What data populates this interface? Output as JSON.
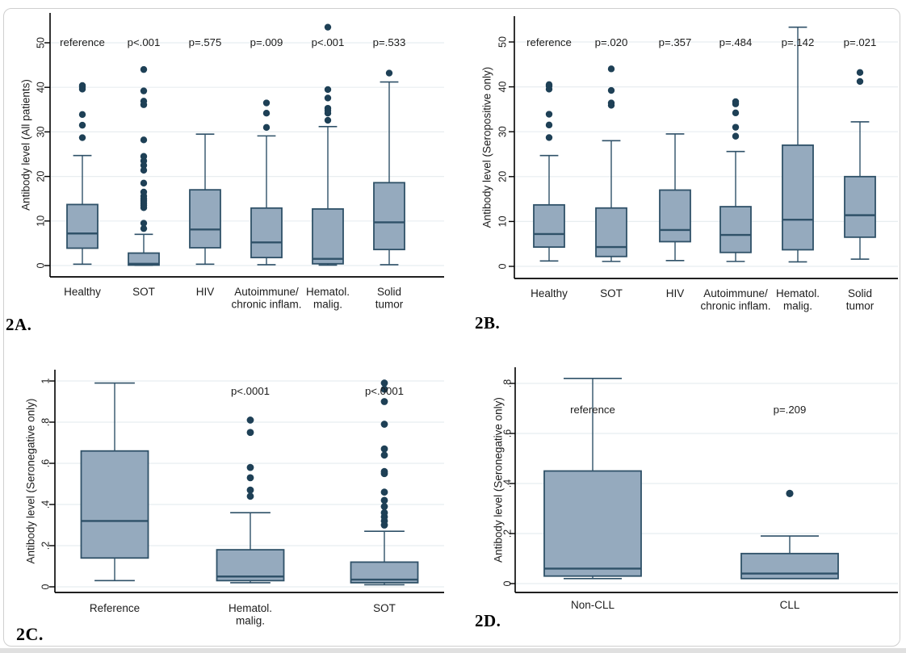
{
  "colors": {
    "box_fill": "#95aabe",
    "box_stroke": "#2f5168",
    "median": "#2f5168",
    "whisker": "#2f5168",
    "outlier_dot": "#1e4056",
    "gridline": "#e8edf0",
    "axis": "#000000",
    "text": "#1c1c1c",
    "card_border": "#cfcfcf"
  },
  "chart_data": [
    {
      "type": "box",
      "id": "2a",
      "panel_label": "2A.",
      "ylabel": "Antibody level (All patients)",
      "ylim": [
        0,
        55
      ],
      "grid": true,
      "ytick_values": [
        0,
        10,
        20,
        30,
        40,
        50
      ],
      "ytick_labels": [
        "0",
        "10",
        "20",
        "30",
        "40",
        "50"
      ],
      "categories": [
        "Healthy",
        "SOT",
        "HIV",
        "Autoimmune/\nchronic inflam.",
        "Hematol.\nmalig.",
        "Solid\ntumor"
      ],
      "annotations": [
        "reference",
        "p<.001",
        "p=.575",
        "p=.009",
        "p<.001",
        "p=.533"
      ],
      "series": [
        {
          "name": "Healthy",
          "lo": 0.3,
          "q1": 3.9,
          "med": 7.2,
          "q3": 13.7,
          "hi": 24.7,
          "outliers": [
            28.7,
            31.5,
            33.9,
            39.6,
            40.1,
            40.4
          ]
        },
        {
          "name": "SOT",
          "lo": 0.05,
          "q1": 0.1,
          "med": 0.4,
          "q3": 2.8,
          "hi": 7.0,
          "outliers": [
            8.3,
            9.5,
            13.0,
            13.5,
            14.0,
            14.5,
            15.0,
            15.6,
            16.5,
            18.5,
            21.4,
            22.5,
            23.5,
            24.5,
            28.2,
            36.1,
            36.9,
            39.2,
            44.0
          ]
        },
        {
          "name": "HIV",
          "lo": 0.3,
          "q1": 4.0,
          "med": 8.1,
          "q3": 17.0,
          "hi": 29.5,
          "outliers": []
        },
        {
          "name": "Autoimmune/chronic inflam.",
          "lo": 0.2,
          "q1": 1.8,
          "med": 5.2,
          "q3": 12.9,
          "hi": 29.1,
          "outliers": [
            31.0,
            34.2,
            36.5
          ]
        },
        {
          "name": "Hematol. malig.",
          "lo": 0.1,
          "q1": 0.4,
          "med": 1.5,
          "q3": 12.7,
          "hi": 31.2,
          "outliers": [
            32.6,
            34.2,
            34.8,
            35.3,
            37.6,
            39.5,
            53.5
          ]
        },
        {
          "name": "Solid tumor",
          "lo": 0.2,
          "q1": 3.6,
          "med": 9.7,
          "q3": 18.6,
          "hi": 41.2,
          "outliers": [
            43.2
          ]
        }
      ]
    },
    {
      "type": "box",
      "id": "2b",
      "panel_label": "2B.",
      "ylabel": "Antibody level (Seropositive only)",
      "ylim": [
        0,
        55
      ],
      "grid": true,
      "ytick_values": [
        0,
        10,
        20,
        30,
        40,
        50
      ],
      "ytick_labels": [
        "0",
        "10",
        "20",
        "30",
        "40",
        "50"
      ],
      "categories": [
        "Healthy",
        "SOT",
        "HIV",
        "Autoimmune/\nchronic inflam.",
        "Hematol.\nmalig.",
        "Solid\ntumor"
      ],
      "annotations": [
        "reference",
        "p=.020",
        "p=.357",
        "p=.484",
        "p=.142",
        "p=.021"
      ],
      "series": [
        {
          "name": "Healthy",
          "lo": 1.2,
          "q1": 4.3,
          "med": 7.2,
          "q3": 13.7,
          "hi": 24.7,
          "outliers": [
            28.7,
            31.5,
            33.9,
            39.5,
            40.2,
            40.5
          ]
        },
        {
          "name": "SOT",
          "lo": 1.1,
          "q1": 2.2,
          "med": 4.3,
          "q3": 13.0,
          "hi": 28.0,
          "outliers": [
            35.9,
            36.4,
            39.2,
            44.0
          ]
        },
        {
          "name": "HIV",
          "lo": 1.3,
          "q1": 5.5,
          "med": 8.1,
          "q3": 17.0,
          "hi": 29.5,
          "outliers": []
        },
        {
          "name": "Autoimmune/chronic inflam.",
          "lo": 1.1,
          "q1": 3.1,
          "med": 7.0,
          "q3": 13.3,
          "hi": 25.6,
          "outliers": [
            29.0,
            31.0,
            34.2,
            36.2,
            36.7
          ]
        },
        {
          "name": "Hematol. malig.",
          "lo": 1.0,
          "q1": 3.7,
          "med": 10.4,
          "q3": 27.0,
          "hi": 53.3,
          "outliers": []
        },
        {
          "name": "Solid tumor",
          "lo": 1.6,
          "q1": 6.5,
          "med": 11.4,
          "q3": 20.0,
          "hi": 32.2,
          "outliers": [
            41.2,
            43.2
          ]
        }
      ]
    },
    {
      "type": "box",
      "id": "2c",
      "panel_label": "2C.",
      "ylabel": "Antibody level (Seronegative only)",
      "ylim": [
        0,
        1.05
      ],
      "grid": true,
      "ytick_values": [
        0,
        0.2,
        0.4,
        0.6,
        0.8,
        1
      ],
      "ytick_labels": [
        "0",
        ".2",
        ".4",
        ".6",
        ".8",
        "1"
      ],
      "categories": [
        "Reference",
        "Hematol.\nmalig.",
        "SOT"
      ],
      "annotations": [
        "",
        "p<.0001",
        "p<.0001"
      ],
      "series": [
        {
          "name": "Reference",
          "lo": 0.03,
          "q1": 0.14,
          "med": 0.32,
          "q3": 0.66,
          "hi": 0.99,
          "outliers": []
        },
        {
          "name": "Hematol. malig.",
          "lo": 0.02,
          "q1": 0.03,
          "med": 0.05,
          "q3": 0.18,
          "hi": 0.36,
          "outliers": [
            0.44,
            0.47,
            0.53,
            0.58,
            0.75,
            0.81
          ]
        },
        {
          "name": "SOT",
          "lo": 0.01,
          "q1": 0.02,
          "med": 0.035,
          "q3": 0.12,
          "hi": 0.27,
          "outliers": [
            0.3,
            0.32,
            0.34,
            0.36,
            0.39,
            0.42,
            0.46,
            0.55,
            0.56,
            0.64,
            0.67,
            0.79,
            0.9,
            0.96,
            0.99
          ]
        }
      ]
    },
    {
      "type": "box",
      "id": "2d",
      "panel_label": "2D.",
      "ylabel": "Antibody level (Seronegative only)",
      "ylim": [
        0,
        0.85
      ],
      "grid": true,
      "ytick_values": [
        0,
        0.2,
        0.4,
        0.6,
        0.8
      ],
      "ytick_labels": [
        "0",
        ".2",
        ".4",
        ".6",
        ".8"
      ],
      "categories": [
        "Non-CLL",
        "CLL"
      ],
      "annotations": [
        "reference",
        "p=.209"
      ],
      "series": [
        {
          "name": "Non-CLL",
          "lo": 0.02,
          "q1": 0.03,
          "med": 0.06,
          "q3": 0.45,
          "hi": 0.82,
          "outliers": []
        },
        {
          "name": "CLL",
          "lo": 0.02,
          "q1": 0.02,
          "med": 0.04,
          "q3": 0.12,
          "hi": 0.19,
          "outliers": [
            0.36
          ]
        }
      ]
    }
  ]
}
